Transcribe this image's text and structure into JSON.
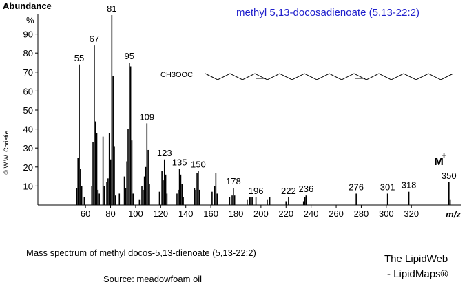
{
  "chart_data": {
    "type": "bar",
    "title": "methyl 5,13-docosadienoate (5,13-22:2)",
    "y_label": "Abundance",
    "y_unit": "%",
    "x_label": "m/z",
    "structure_label": "CH3OOC",
    "molecular_ion_label": "M",
    "molecular_ion_charge": "+",
    "copyright": "© W.W. Christie",
    "caption": "Mass spectrum of methyl docos-5,13-dienoate (5,13-22:2)",
    "source": "Source: meadowfoam oil",
    "brand_1": "The LipidWeb",
    "brand_2": "- LipidMaps®",
    "color": "#000000",
    "title_color": "#1f1fcc",
    "x": [
      53,
      54,
      55,
      56,
      57,
      59,
      65,
      66,
      67,
      68,
      69,
      70,
      71,
      74,
      75,
      77,
      78,
      79,
      80,
      81,
      82,
      83,
      84,
      87,
      91,
      92,
      93,
      94,
      95,
      96,
      97,
      98,
      103,
      105,
      106,
      107,
      108,
      109,
      110,
      111,
      119,
      121,
      122,
      123,
      124,
      125,
      133,
      134,
      135,
      136,
      137,
      138,
      147,
      148,
      149,
      150,
      151,
      161,
      163,
      164,
      165,
      175,
      177,
      178,
      179,
      189,
      191,
      192,
      193,
      196,
      205,
      207,
      220,
      222,
      234,
      235,
      236,
      276,
      301,
      318,
      350,
      351
    ],
    "values": [
      9,
      25,
      74,
      19,
      10,
      4,
      10,
      33,
      84,
      44,
      38,
      8,
      6,
      36,
      10,
      12,
      14,
      38,
      24,
      100,
      68,
      31,
      5,
      6,
      15,
      9,
      23,
      40,
      75,
      73,
      34,
      6,
      3,
      10,
      8,
      15,
      20,
      43,
      29,
      11,
      7,
      18,
      13,
      24,
      16,
      6,
      6,
      8,
      19,
      16,
      11,
      4,
      9,
      8,
      17,
      18,
      8,
      7,
      10,
      17,
      6,
      4,
      5,
      9,
      5,
      3,
      4,
      4,
      4,
      4,
      3,
      4,
      2,
      4,
      2,
      4,
      5,
      6,
      6,
      7,
      12,
      3
    ],
    "peak_labels": [
      55,
      67,
      81,
      95,
      109,
      123,
      135,
      150,
      178,
      196,
      222,
      236,
      276,
      301,
      318,
      350
    ],
    "xlim": [
      22,
      360
    ],
    "ylim": [
      0,
      100
    ],
    "xticks": [
      60,
      80,
      100,
      120,
      140,
      160,
      180,
      200,
      220,
      240,
      260,
      280,
      300,
      320
    ],
    "yticks": [
      10,
      20,
      30,
      40,
      50,
      60,
      70,
      80,
      90
    ]
  }
}
